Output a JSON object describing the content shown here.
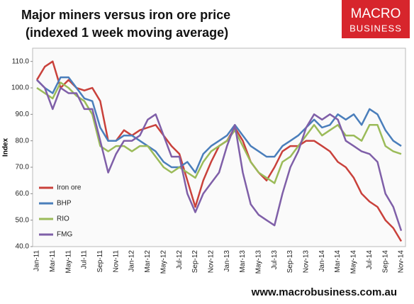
{
  "chart_data": {
    "type": "line",
    "title": "Major miners versus iron ore price",
    "subtitle": "(indexed 1 week moving average)",
    "y_label": "Index",
    "logo": [
      "MACRO",
      "BUSINESS"
    ],
    "footer": "www.macrobusiness.com.au",
    "categories": [
      "Jan-11",
      null,
      "Mar-11",
      null,
      "May-11",
      null,
      "Jul-11",
      null,
      "Sep-11",
      null,
      "Nov-11",
      null,
      "Jan-12",
      null,
      "Mar-12",
      null,
      "May-12",
      null,
      "Jul-12",
      null,
      "Sep-12",
      null,
      "Nov-12",
      null,
      "Jan-13",
      null,
      "Mar-13",
      null,
      "May-13",
      null,
      "Jul-13",
      null,
      "Sep-13",
      null,
      "Nov-13",
      null,
      "Jan-14",
      null,
      "Mar-14",
      null,
      "May-14",
      null,
      "Jul-14",
      null,
      "Sep-14",
      null,
      "Nov-14"
    ],
    "series": [
      {
        "name": "Iron ore",
        "color": "#c9413b",
        "values": [
          103,
          108,
          110,
          100,
          103,
          100,
          99,
          100,
          95,
          80,
          80,
          84,
          82,
          84,
          85,
          86,
          82,
          78,
          75,
          65,
          55,
          65,
          72,
          78,
          80,
          85,
          80,
          72,
          68,
          65,
          70,
          76,
          78,
          78,
          80,
          80,
          78,
          76,
          72,
          70,
          66,
          60,
          57,
          55,
          50,
          47,
          42
        ]
      },
      {
        "name": "BHP",
        "color": "#4a7ebb",
        "values": [
          103,
          100,
          98,
          104,
          104,
          100,
          96,
          95,
          85,
          80,
          80,
          82,
          82,
          80,
          78,
          76,
          72,
          70,
          70,
          72,
          68,
          75,
          78,
          80,
          82,
          86,
          82,
          78,
          76,
          74,
          74,
          78,
          80,
          82,
          85,
          88,
          85,
          86,
          90,
          88,
          90,
          86,
          92,
          90,
          84,
          80,
          78
        ]
      },
      {
        "name": "RIO",
        "color": "#9bbb59",
        "values": [
          100,
          98,
          96,
          102,
          100,
          97,
          95,
          90,
          78,
          76,
          78,
          78,
          76,
          78,
          78,
          74,
          70,
          68,
          70,
          68,
          66,
          72,
          76,
          78,
          80,
          84,
          78,
          72,
          68,
          66,
          64,
          72,
          74,
          78,
          82,
          86,
          82,
          84,
          86,
          82,
          82,
          80,
          86,
          86,
          78,
          76,
          75
        ]
      },
      {
        "name": "FMG",
        "color": "#7f5fa8",
        "values": [
          103,
          100,
          92,
          100,
          98,
          98,
          92,
          92,
          80,
          68,
          75,
          80,
          80,
          82,
          88,
          90,
          82,
          74,
          74,
          60,
          53,
          60,
          64,
          68,
          78,
          86,
          68,
          56,
          52,
          50,
          48,
          60,
          70,
          76,
          85,
          90,
          88,
          90,
          88,
          80,
          78,
          76,
          75,
          72,
          60,
          55,
          46
        ]
      }
    ],
    "ylim": [
      40,
      115
    ],
    "yticks": [
      {
        "value": 40,
        "label": "40.0"
      },
      {
        "value": 50,
        "label": "50.0"
      },
      {
        "value": 60,
        "label": "60.0"
      },
      {
        "value": 70,
        "label": "70.0"
      },
      {
        "value": 80,
        "label": "80.0"
      },
      {
        "value": 90,
        "label": "90.0"
      },
      {
        "value": 100,
        "label": "100.0"
      },
      {
        "value": 110,
        "label": "110.0"
      }
    ],
    "grid": false,
    "legend": "left"
  }
}
